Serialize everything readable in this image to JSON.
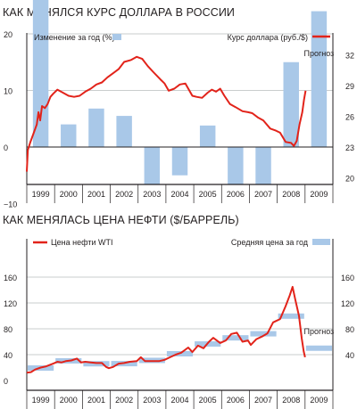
{
  "charts": {
    "usd": {
      "title": "КАК МЕНЯЛСЯ КУРС ДОЛЛАРА В РОССИИ"
    },
    "oil": {
      "title": "КАК МЕНЯЛАСЬ ЦЕНА НЕФТИ ($/БАРРЕЛЬ)"
    }
  },
  "colors": {
    "bar": "#a9c8e8",
    "line": "#e2231a",
    "grid": "#b8bcbe",
    "axis": "#231f20"
  },
  "chart_data": [
    {
      "type": "bar+line",
      "title": "КАК МЕНЯЛСЯ КУРС ДОЛЛАРА В РОССИИ",
      "categories": [
        "1999",
        "2000",
        "2001",
        "2002",
        "2003",
        "2004",
        "2005",
        "2006",
        "2007",
        "2008",
        "2009"
      ],
      "legend": [
        {
          "label": "Изменение за год (%)",
          "kind": "bar",
          "placement": "top-left"
        },
        {
          "label": "Курс доллара (руб./$)",
          "kind": "line",
          "placement": "top-right"
        }
      ],
      "y_left": {
        "ticks": [
          "30",
          "20",
          "10",
          "0",
          "−10"
        ],
        "range": [
          -10,
          30
        ]
      },
      "y_right": {
        "ticks": [
          "32",
          "29",
          "26",
          "23",
          "20"
        ],
        "range": [
          20,
          32
        ]
      },
      "grid": true,
      "bars": {
        "name": "Изменение за год (%)",
        "values": [
          30.5,
          4.0,
          6.8,
          5.5,
          -9.0,
          -5.0,
          3.8,
          -9.0,
          -7.0,
          15.0,
          24.0
        ]
      },
      "annotations": [
        {
          "text": "Прогноз",
          "category": "2009"
        }
      ],
      "line": {
        "name": "Курс доллара (руб./$)",
        "points": [
          [
            1999.0,
            20.6
          ],
          [
            1999.04,
            22.7
          ],
          [
            1999.12,
            23.4
          ],
          [
            1999.2,
            24.0
          ],
          [
            1999.28,
            24.6
          ],
          [
            1999.36,
            25.2
          ],
          [
            1999.42,
            26.4
          ],
          [
            1999.48,
            25.6
          ],
          [
            1999.55,
            27.0
          ],
          [
            1999.65,
            26.8
          ],
          [
            1999.75,
            27.2
          ],
          [
            1999.85,
            27.9
          ],
          [
            1999.95,
            28.2
          ],
          [
            2000.1,
            28.6
          ],
          [
            2000.3,
            28.3
          ],
          [
            2000.5,
            28.0
          ],
          [
            2000.7,
            27.9
          ],
          [
            2000.9,
            28.0
          ],
          [
            2001.1,
            28.4
          ],
          [
            2001.3,
            28.7
          ],
          [
            2001.5,
            29.1
          ],
          [
            2001.7,
            29.3
          ],
          [
            2001.9,
            29.8
          ],
          [
            2002.1,
            30.2
          ],
          [
            2002.3,
            30.6
          ],
          [
            2002.5,
            31.3
          ],
          [
            2002.75,
            31.5
          ],
          [
            2002.95,
            31.8
          ],
          [
            2003.15,
            31.6
          ],
          [
            2003.35,
            30.9
          ],
          [
            2003.55,
            30.3
          ],
          [
            2003.8,
            29.6
          ],
          [
            2003.95,
            29.2
          ],
          [
            2004.1,
            28.5
          ],
          [
            2004.3,
            28.7
          ],
          [
            2004.5,
            29.1
          ],
          [
            2004.7,
            29.2
          ],
          [
            2004.95,
            28.0
          ],
          [
            2005.1,
            27.9
          ],
          [
            2005.3,
            27.8
          ],
          [
            2005.5,
            28.3
          ],
          [
            2005.65,
            28.6
          ],
          [
            2005.8,
            28.4
          ],
          [
            2005.95,
            28.7
          ],
          [
            2006.1,
            28.0
          ],
          [
            2006.3,
            27.2
          ],
          [
            2006.5,
            26.9
          ],
          [
            2006.75,
            26.5
          ],
          [
            2006.95,
            26.4
          ],
          [
            2007.1,
            26.3
          ],
          [
            2007.3,
            25.9
          ],
          [
            2007.5,
            25.6
          ],
          [
            2007.75,
            24.8
          ],
          [
            2007.95,
            24.6
          ],
          [
            2008.1,
            24.4
          ],
          [
            2008.3,
            23.5
          ],
          [
            2008.5,
            23.4
          ],
          [
            2008.6,
            23.1
          ],
          [
            2008.7,
            23.6
          ],
          [
            2008.8,
            25.2
          ],
          [
            2008.9,
            26.4
          ],
          [
            2008.96,
            27.6
          ],
          [
            2009.02,
            28.5
          ]
        ]
      }
    },
    {
      "type": "line+steps",
      "title": "КАК МЕНЯЛАСЬ ЦЕНА НЕФТИ ($/БАРРЕЛЬ)",
      "categories": [
        "1999",
        "2000",
        "2001",
        "2002",
        "2003",
        "2004",
        "2005",
        "2006",
        "2007",
        "2008",
        "2009"
      ],
      "legend": [
        {
          "label": "Цена нефти WTI",
          "kind": "line",
          "placement": "top-left"
        },
        {
          "label": "Средняя цена за год",
          "kind": "bar",
          "placement": "top-right"
        }
      ],
      "y_left": {
        "ticks": [
          "160",
          "120",
          "80",
          "40",
          "0"
        ],
        "range": [
          0,
          160
        ]
      },
      "y_right": {
        "ticks": [
          "160",
          "120",
          "80",
          "40"
        ],
        "range": [
          0,
          160
        ]
      },
      "grid": true,
      "averages": {
        "name": "Средняя цена за год",
        "values": [
          19.3,
          30.4,
          25.9,
          26.1,
          31.1,
          41.4,
          56.5,
          66.0,
          72.3,
          99.6,
          50.0
        ]
      },
      "annotations": [
        {
          "text": "Прогноз",
          "category": "2009"
        }
      ],
      "line": {
        "name": "Цена нефти WTI",
        "points": [
          [
            1999.0,
            12
          ],
          [
            1999.15,
            13
          ],
          [
            1999.3,
            17
          ],
          [
            1999.5,
            20
          ],
          [
            1999.7,
            22
          ],
          [
            1999.95,
            26
          ],
          [
            2000.1,
            29
          ],
          [
            2000.25,
            28
          ],
          [
            2000.4,
            30
          ],
          [
            2000.6,
            31
          ],
          [
            2000.8,
            34
          ],
          [
            2000.95,
            28
          ],
          [
            2001.1,
            29
          ],
          [
            2001.3,
            28
          ],
          [
            2001.5,
            27
          ],
          [
            2001.7,
            27
          ],
          [
            2001.85,
            21
          ],
          [
            2001.95,
            19
          ],
          [
            2002.1,
            21
          ],
          [
            2002.3,
            26
          ],
          [
            2002.5,
            27
          ],
          [
            2002.7,
            29
          ],
          [
            2002.95,
            30
          ],
          [
            2003.1,
            36
          ],
          [
            2003.25,
            30
          ],
          [
            2003.5,
            30
          ],
          [
            2003.75,
            30
          ],
          [
            2003.95,
            32
          ],
          [
            2004.15,
            36
          ],
          [
            2004.35,
            40
          ],
          [
            2004.55,
            43
          ],
          [
            2004.8,
            51
          ],
          [
            2004.95,
            44
          ],
          [
            2005.15,
            54
          ],
          [
            2005.35,
            50
          ],
          [
            2005.55,
            60
          ],
          [
            2005.7,
            66
          ],
          [
            2005.95,
            58
          ],
          [
            2006.15,
            62
          ],
          [
            2006.35,
            72
          ],
          [
            2006.55,
            74
          ],
          [
            2006.75,
            60
          ],
          [
            2006.95,
            62
          ],
          [
            2007.05,
            55
          ],
          [
            2007.25,
            64
          ],
          [
            2007.45,
            68
          ],
          [
            2007.65,
            73
          ],
          [
            2007.85,
            90
          ],
          [
            2007.95,
            92
          ],
          [
            2008.1,
            95
          ],
          [
            2008.3,
            115
          ],
          [
            2008.45,
            132
          ],
          [
            2008.55,
            145
          ],
          [
            2008.65,
            125
          ],
          [
            2008.78,
            100
          ],
          [
            2008.88,
            65
          ],
          [
            2008.95,
            45
          ],
          [
            2009.0,
            36
          ]
        ]
      }
    }
  ]
}
